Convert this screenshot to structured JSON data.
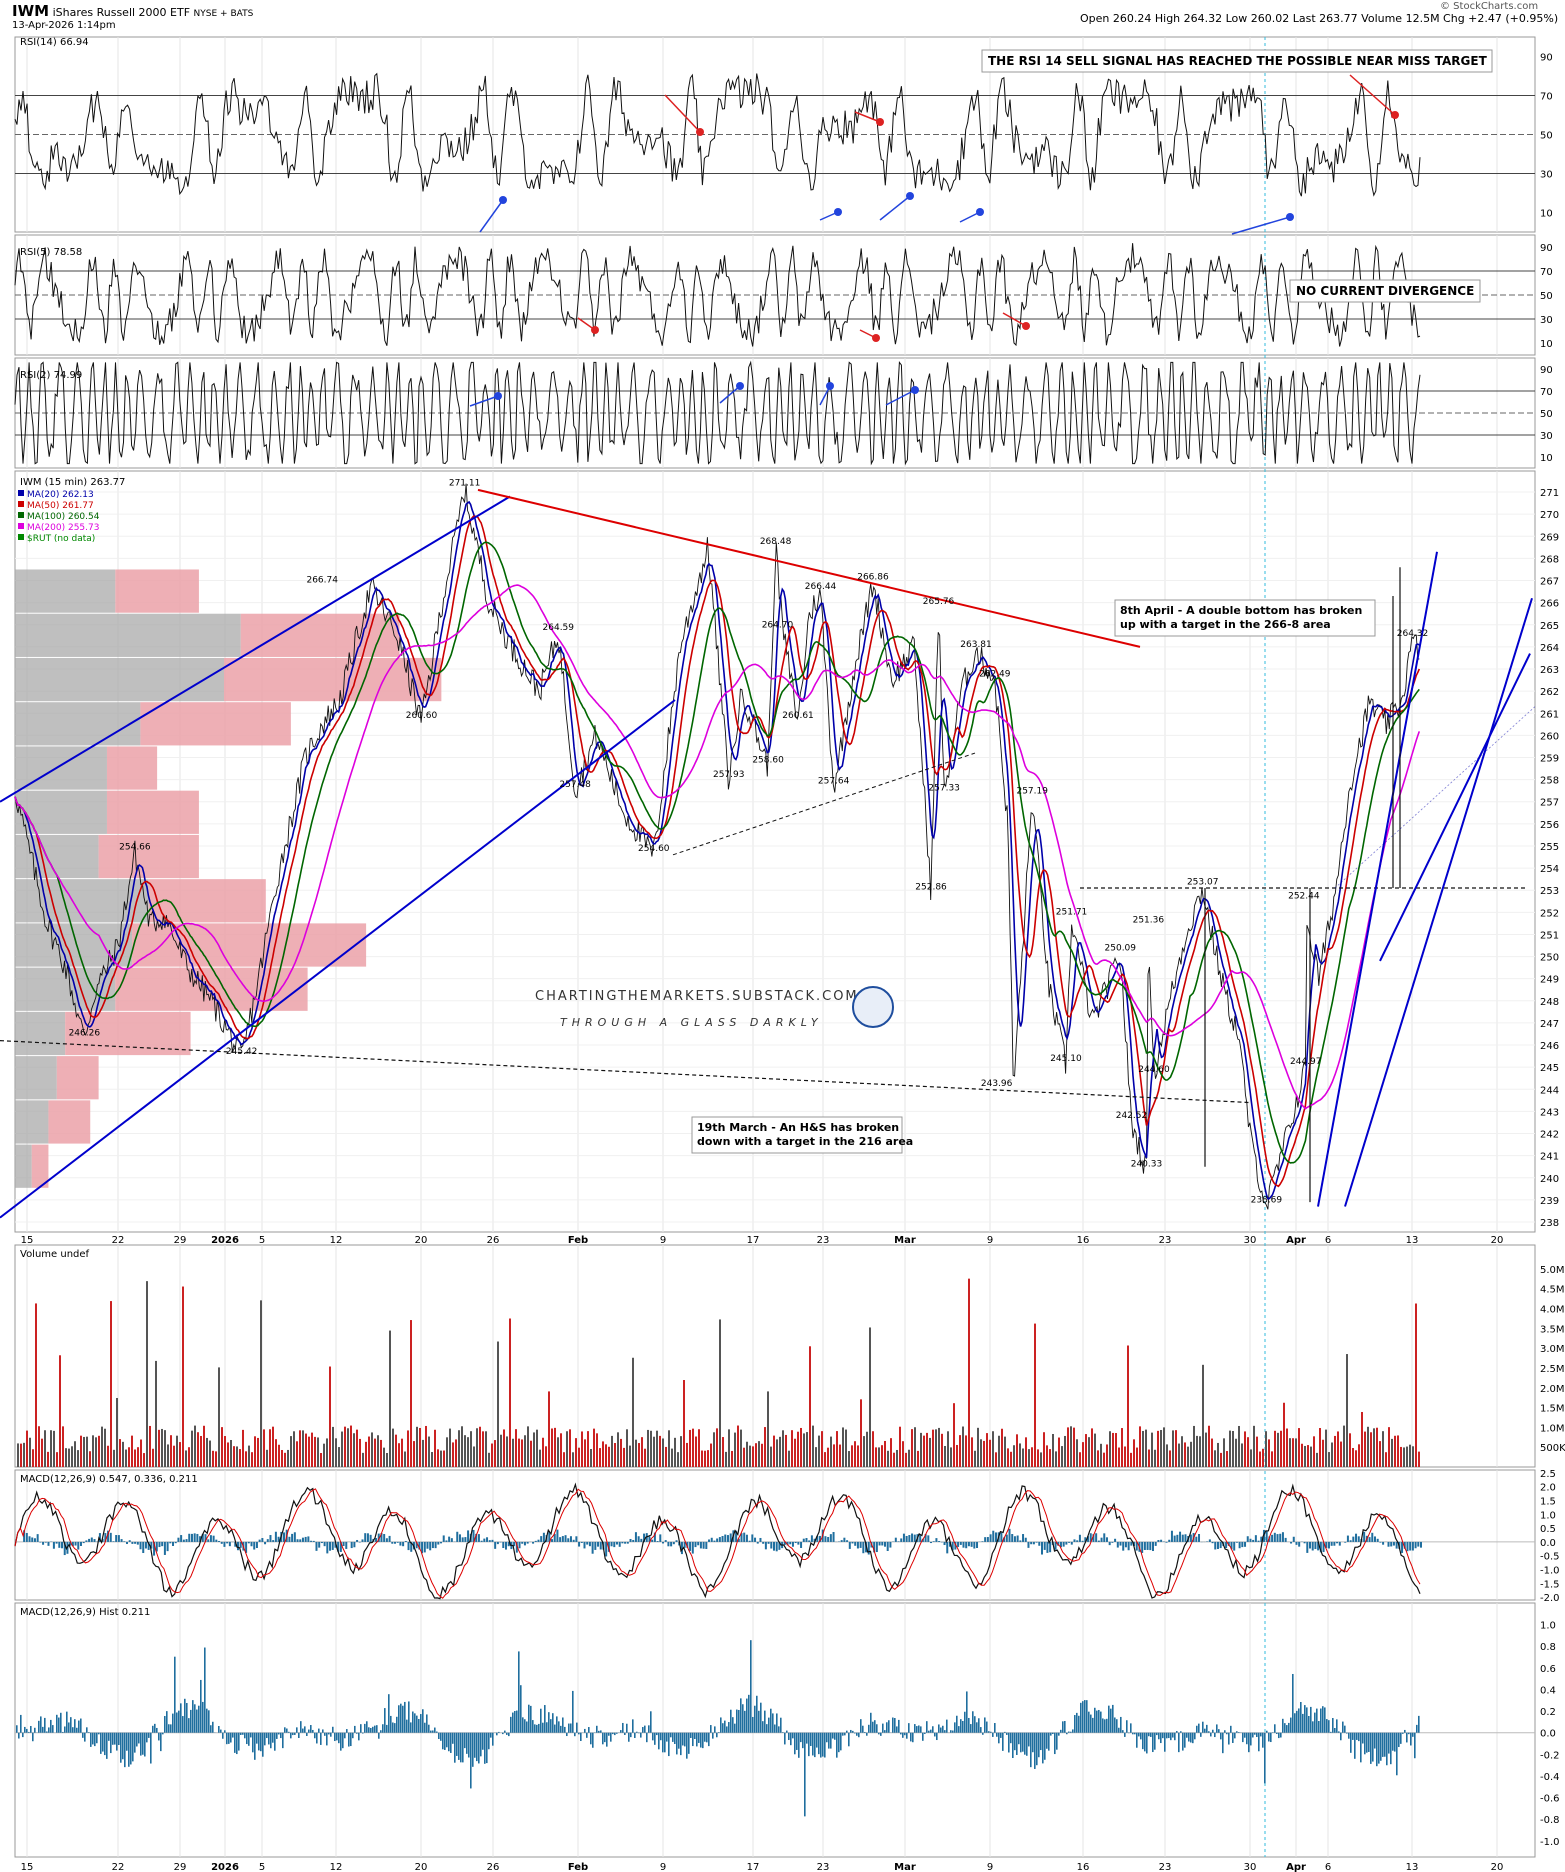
{
  "header": {
    "symbol": "IWM",
    "name": "iShares Russell 2000 ETF",
    "exchange": "NYSE + BATS",
    "date": "13-Apr-2026 1:14pm",
    "ohlc": "Open 260.24  High 264.32  Low 260.02  Last 263.77  Volume 12.5M  Chg +2.47 (+0.95%)",
    "copyright": "© StockCharts.com"
  },
  "panels": {
    "rsi14": {
      "label": "RSI(14) 66.94",
      "ticks": [
        "90",
        "70",
        "50",
        "30",
        "10"
      ],
      "note": "THE RSI 14 SELL SIGNAL HAS REACHED THE POSSIBLE NEAR MISS TARGET"
    },
    "rsi5": {
      "label": "RSI(5) 78.58",
      "ticks": [
        "90",
        "70",
        "50",
        "30",
        "10"
      ],
      "note": "NO CURRENT DIVERGENCE"
    },
    "rsi2": {
      "label": "RSI(2) 74.99",
      "ticks": [
        "90",
        "70",
        "50",
        "30",
        "10"
      ]
    },
    "price": {
      "title": "IWM (15 min) 263.77",
      "legend": [
        {
          "label": "MA(20) 262.13",
          "color": "#0000aa"
        },
        {
          "label": "MA(50) 261.77",
          "color": "#cc0000"
        },
        {
          "label": "MA(100) 260.54",
          "color": "#006600"
        },
        {
          "label": "MA(200) 255.73",
          "color": "#dd00dd"
        },
        {
          "label": "$RUT (no data)",
          "color": "#008800"
        }
      ],
      "ticks": [
        "271",
        "270",
        "269",
        "268",
        "267",
        "266",
        "265",
        "264",
        "263",
        "262",
        "261",
        "260",
        "259",
        "258",
        "257",
        "256",
        "255",
        "254",
        "253",
        "252",
        "251",
        "250",
        "249",
        "248",
        "247",
        "246",
        "245",
        "244",
        "243",
        "242",
        "241",
        "240",
        "239",
        "238"
      ],
      "annotation_hs": [
        "19th March - An H&S has broken",
        "down with a target in the 216 area"
      ],
      "annotation_db": [
        "8th April - A double bottom has broken",
        "up with a target in the 266-8 area"
      ],
      "watermark": "CHARTINGTHEMARKETS.SUBSTACK.COM",
      "watermark_sub": "THROUGH A GLASS DARKLY",
      "price_labels": [
        {
          "t": "271.11",
          "x": 24.0,
          "p": 271.11
        },
        {
          "t": "268.48",
          "x": 40.6,
          "p": 268.48
        },
        {
          "t": "266.74",
          "x": 16.4,
          "p": 266.74
        },
        {
          "t": "266.44",
          "x": 43.0,
          "p": 266.44
        },
        {
          "t": "266.86",
          "x": 45.8,
          "p": 266.86
        },
        {
          "t": "265.76",
          "x": 49.3,
          "p": 265.76
        },
        {
          "t": "264.59",
          "x": 29.0,
          "p": 264.59
        },
        {
          "t": "264.70",
          "x": 40.7,
          "p": 264.7
        },
        {
          "t": "263.81",
          "x": 51.3,
          "p": 263.81
        },
        {
          "t": "262.49",
          "x": 52.3,
          "p": 262.49
        },
        {
          "t": "260.60",
          "x": 21.7,
          "p": 260.6
        },
        {
          "t": "260.61",
          "x": 41.8,
          "p": 260.61
        },
        {
          "t": "258.60",
          "x": 40.2,
          "p": 258.6
        },
        {
          "t": "257.93",
          "x": 38.1,
          "p": 257.93
        },
        {
          "t": "257.64",
          "x": 43.7,
          "p": 257.64
        },
        {
          "t": "257.48",
          "x": 29.9,
          "p": 257.48
        },
        {
          "t": "257.33",
          "x": 49.6,
          "p": 257.33
        },
        {
          "t": "257.19",
          "x": 54.3,
          "p": 257.19
        },
        {
          "t": "254.66",
          "x": 6.4,
          "p": 254.66
        },
        {
          "t": "254.60",
          "x": 34.1,
          "p": 254.6
        },
        {
          "t": "253.07",
          "x": 63.4,
          "p": 253.07
        },
        {
          "t": "252.86",
          "x": 48.9,
          "p": 252.86
        },
        {
          "t": "252.44",
          "x": 68.8,
          "p": 252.44
        },
        {
          "t": "251.71",
          "x": 56.4,
          "p": 251.71
        },
        {
          "t": "251.36",
          "x": 60.5,
          "p": 251.36
        },
        {
          "t": "250.09",
          "x": 59.0,
          "p": 250.09
        },
        {
          "t": "246.26",
          "x": 3.7,
          "p": 246.26
        },
        {
          "t": "245.42",
          "x": 12.1,
          "p": 245.42
        },
        {
          "t": "245.10",
          "x": 56.1,
          "p": 245.1
        },
        {
          "t": "244.97",
          "x": 68.9,
          "p": 244.97
        },
        {
          "t": "244.60",
          "x": 60.8,
          "p": 244.6
        },
        {
          "t": "243.96",
          "x": 52.4,
          "p": 243.96
        },
        {
          "t": "242.52",
          "x": 59.6,
          "p": 242.52
        },
        {
          "t": "240.33",
          "x": 60.4,
          "p": 240.33
        },
        {
          "t": "238.69",
          "x": 66.8,
          "p": 238.69
        },
        {
          "t": "264.32",
          "x": 74.6,
          "p": 264.32
        }
      ]
    },
    "volume": {
      "label": "Volume undef",
      "ticks": [
        "5.0M",
        "4.5M",
        "4.0M",
        "3.5M",
        "3.0M",
        "2.5M",
        "2.0M",
        "1.5M",
        "1.0M",
        "500K"
      ]
    },
    "macd": {
      "label": "MACD(12,26,9) 0.547, 0.336, 0.211",
      "ticks": [
        "2.5",
        "2.0",
        "1.5",
        "1.0",
        "0.5",
        "0.0",
        "-0.5",
        "-1.0",
        "-1.5",
        "-2.0"
      ]
    },
    "macdhist": {
      "label": "MACD(12,26,9) Hist 0.211",
      "ticks": [
        "1.0",
        "0.8",
        "0.6",
        "0.4",
        "0.2",
        "0.0",
        "-0.2",
        "-0.4",
        "-0.6",
        "-0.8",
        "-1.0"
      ]
    }
  },
  "x_axis": [
    "15",
    "22",
    "29",
    "2026",
    "5",
    "12",
    "20",
    "26",
    "Feb",
    "9",
    "17",
    "23",
    "Mar",
    "9",
    "16",
    "23",
    "30",
    "Apr",
    "6",
    "13",
    "20"
  ],
  "colors": {
    "bg": "#ffffff",
    "grid": "#e4e4e4",
    "ma20": "#0000aa",
    "ma50": "#cc0000",
    "ma100": "#006600",
    "ma200": "#dd00dd",
    "volume_up": "#555555",
    "volume_down": "#cc2222",
    "hist": "#1f6e9e",
    "vbp_gray": "#aaaaaa",
    "vbp_pink": "#eba1a8",
    "trend_blue": "#0000cc",
    "trend_red": "#dd0000"
  },
  "chart_data": [
    {
      "type": "line",
      "title": "RSI(14) 66.94",
      "ylim": [
        0,
        100
      ],
      "reference_lines": [
        70,
        50,
        30
      ],
      "last_value": 66.94
    },
    {
      "type": "line",
      "title": "RSI(5) 78.58",
      "ylim": [
        0,
        100
      ],
      "reference_lines": [
        70,
        50,
        30
      ],
      "last_value": 78.58
    },
    {
      "type": "line",
      "title": "RSI(2) 74.99",
      "ylim": [
        0,
        100
      ],
      "reference_lines": [
        70,
        50,
        30
      ],
      "last_value": 74.99
    },
    {
      "type": "line",
      "title": "IWM (15 min) 263.77",
      "ylim": [
        238,
        271.5
      ],
      "x": [
        0,
        1.7,
        2.7,
        3.7,
        4.3,
        5.5,
        6.4,
        7.2,
        8.0,
        9.2,
        10.5,
        12.1,
        13.0,
        14.0,
        15.5,
        16.4,
        17.3,
        19.0,
        20.4,
        21.7,
        22.8,
        24.0,
        25.3,
        26.5,
        28.0,
        29.0,
        29.9,
        31.0,
        32.5,
        34.1,
        35.5,
        37.0,
        38.1,
        38.8,
        40.2,
        40.6,
        41.0,
        41.8,
        42.4,
        43.0,
        43.7,
        44.8,
        45.8,
        46.8,
        48.0,
        48.9,
        49.3,
        49.6,
        50.5,
        51.3,
        52.3,
        53.0,
        53.3,
        54.3,
        55.2,
        56.1,
        56.4,
        57.5,
        58.0,
        59.0,
        59.6,
        60.4,
        60.5,
        60.8,
        61.5,
        62.5,
        63.4,
        64.0,
        64.7,
        65.3,
        66.0,
        66.8,
        67.6,
        68.9,
        68.8,
        69.6,
        70.5,
        71.2,
        72.3,
        73.2,
        74.0,
        74.6,
        75.0
      ],
      "series": [
        {
          "name": "IWM",
          "values": [
            257.5,
            251.5,
            249.5,
            246.3,
            248.5,
            250.5,
            254.7,
            251.5,
            251.8,
            249.5,
            248.0,
            245.4,
            249.0,
            253.5,
            259.0,
            260.5,
            261.5,
            266.7,
            264.5,
            260.6,
            266.0,
            271.1,
            266.0,
            264.0,
            262.0,
            264.6,
            257.5,
            260.0,
            256.5,
            254.6,
            264.0,
            268.5,
            257.9,
            262.0,
            258.6,
            268.5,
            264.7,
            260.6,
            265.5,
            266.4,
            257.6,
            263.0,
            266.9,
            262.5,
            264.0,
            252.9,
            265.8,
            257.3,
            262.0,
            263.8,
            262.5,
            256.0,
            243.96,
            257.2,
            248.5,
            245.1,
            251.7,
            247.0,
            248.0,
            250.1,
            242.5,
            240.3,
            251.4,
            244.6,
            247.5,
            251.0,
            253.1,
            250.5,
            248.0,
            246.5,
            241.5,
            238.7,
            241.0,
            245.0,
            252.4,
            249.0,
            253.0,
            257.5,
            261.5,
            260.5,
            261.5,
            264.3,
            263.77
          ]
        }
      ]
    },
    {
      "type": "bar",
      "title": "Volume undef",
      "ylim": [
        0,
        5300000
      ]
    },
    {
      "type": "line",
      "title": "MACD(12,26,9) 0.547, 0.336, 0.211",
      "ylim": [
        -2.1,
        2.6
      ],
      "series": [
        {
          "name": "MACD(12,26,9)",
          "values": [
            0.547
          ]
        },
        {
          "name": "signal",
          "values": [
            0.336
          ]
        },
        {
          "name": "hist",
          "values": [
            0.211
          ]
        }
      ]
    },
    {
      "type": "bar",
      "title": "MACD(12,26,9) Hist 0.211",
      "ylim": [
        -1.15,
        1.2
      ],
      "last_value": 0.211
    }
  ]
}
